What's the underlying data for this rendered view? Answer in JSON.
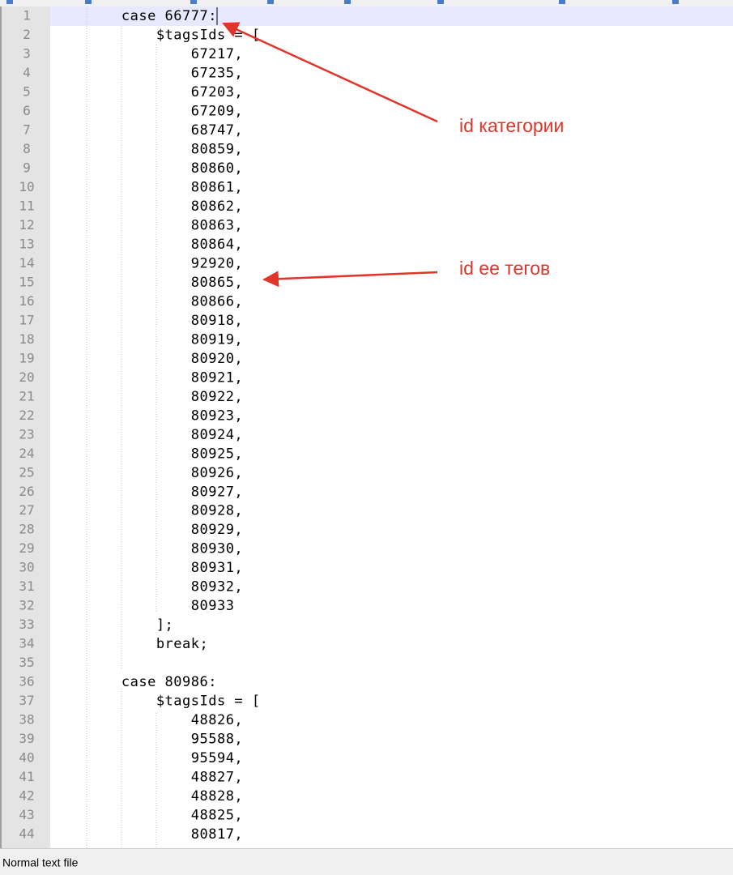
{
  "editor": {
    "line_numbers": [
      1,
      2,
      3,
      4,
      5,
      6,
      7,
      8,
      9,
      10,
      11,
      12,
      13,
      14,
      15,
      16,
      17,
      18,
      19,
      20,
      21,
      22,
      23,
      24,
      25,
      26,
      27,
      28,
      29,
      30,
      31,
      32,
      33,
      34,
      35,
      36,
      37,
      38,
      39,
      40,
      41,
      42,
      43,
      44
    ],
    "lines": [
      "        case 66777:",
      "            $tagsIds = [",
      "                67217,",
      "                67235,",
      "                67203,",
      "                67209,",
      "                68747,",
      "                80859,",
      "                80860,",
      "                80861,",
      "                80862,",
      "                80863,",
      "                80864,",
      "                92920,",
      "                80865,",
      "                80866,",
      "                80918,",
      "                80919,",
      "                80920,",
      "                80921,",
      "                80922,",
      "                80923,",
      "                80924,",
      "                80925,",
      "                80926,",
      "                80927,",
      "                80928,",
      "                80929,",
      "                80930,",
      "                80931,",
      "                80932,",
      "                80933",
      "            ];",
      "            break;",
      null,
      "        case 80986:",
      "            $tagsIds = [",
      "                48826,",
      "                95588,",
      "                95594,",
      "                48827,",
      "                48828,",
      "                48825,",
      "                80817,"
    ]
  },
  "annotations": [
    "id категории",
    "id ее тегов"
  ],
  "status_bar": {
    "file_type": "Normal text file"
  }
}
